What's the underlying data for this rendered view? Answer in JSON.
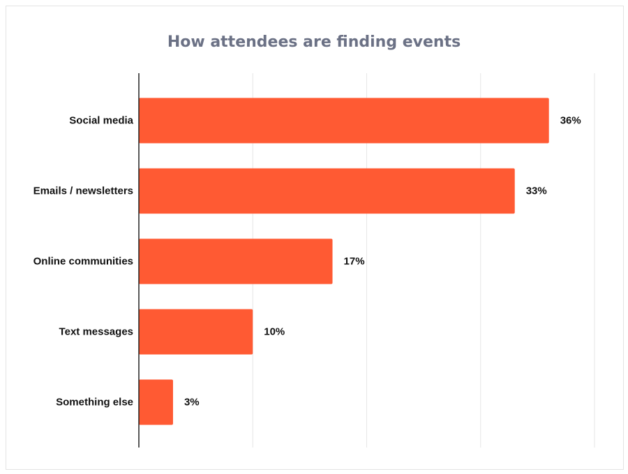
{
  "chart_data": {
    "type": "bar",
    "orientation": "horizontal",
    "title": "How attendees are finding events",
    "xlabel": "",
    "ylabel": "",
    "categories": [
      "Social media",
      "Emails / newsletters",
      "Online communities",
      "Text messages",
      "Something else"
    ],
    "values": [
      36,
      33,
      17,
      10,
      3
    ],
    "value_labels": [
      "36%",
      "33%",
      "17%",
      "10%",
      "3%"
    ],
    "xlim": [
      0,
      40
    ],
    "grid": true,
    "legend": "none",
    "bar_color": "#ff5a33",
    "grid_color": "#e6e6e6",
    "axis_color": "#222222"
  }
}
